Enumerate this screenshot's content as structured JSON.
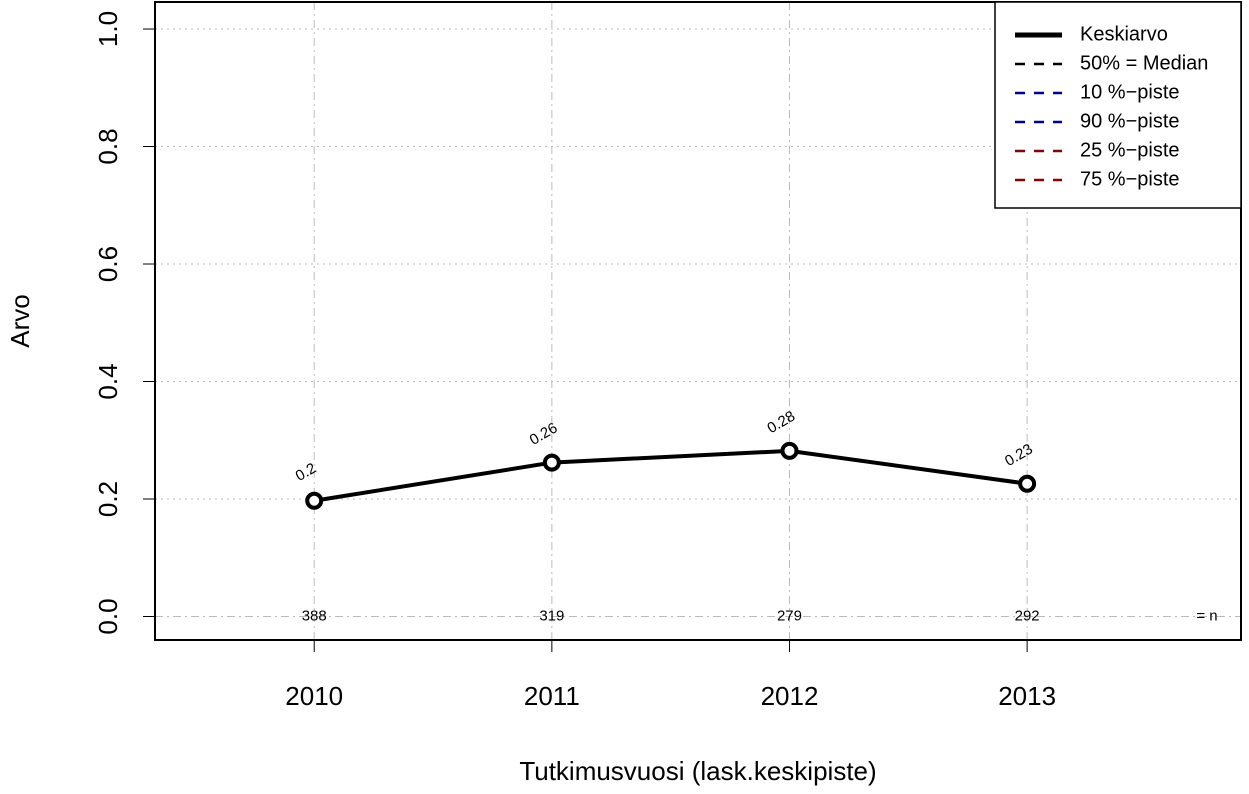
{
  "chart_data": {
    "type": "line",
    "xlabel": "Tutkimusvuosi (lask.keskipiste)",
    "ylabel": "Arvo",
    "x": [
      2010,
      2011,
      2012,
      2013
    ],
    "series": [
      {
        "name": "Keskiarvo",
        "color": "#000000",
        "values": [
          0.197,
          0.262,
          0.282,
          0.226
        ],
        "value_labels": [
          "0.2",
          "0.26",
          "0.28",
          "0.23"
        ]
      }
    ],
    "legend_entries": [
      {
        "name": "50% = Median",
        "color": "#000000"
      },
      {
        "name": "10 %−piste",
        "color": "#00008b"
      },
      {
        "name": "90 %−piste",
        "color": "#00008b"
      },
      {
        "name": "25 %−piste",
        "color": "#8b0000"
      },
      {
        "name": "75 %−piste",
        "color": "#8b0000"
      }
    ],
    "legend": "top-right",
    "n": [
      388,
      319,
      279,
      292
    ],
    "n_label": "= n",
    "xlim": [
      2009.33,
      2013.9
    ],
    "ylim": [
      -0.04,
      1.046
    ],
    "xticks": [
      2010,
      2011,
      2012,
      2013
    ],
    "yticks": [
      {
        "value": 0,
        "label": "0.0"
      },
      0.2,
      0.4,
      0.6,
      0.8,
      {
        "value": 1,
        "label": "1.0"
      }
    ],
    "grid": true
  }
}
